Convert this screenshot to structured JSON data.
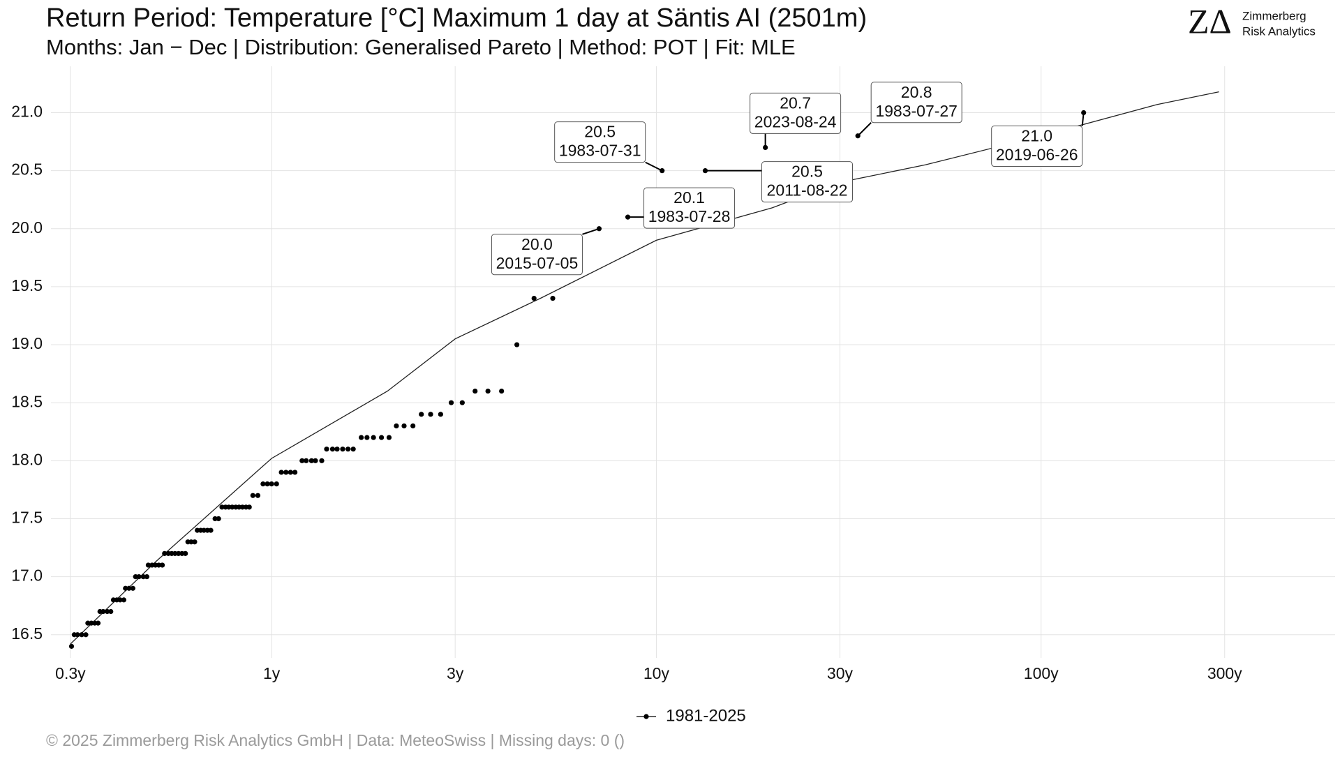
{
  "chart_data": {
    "type": "scatter",
    "title": "Return Period: Temperature [°C] Maximum 1 day at Säntis  AI (2501m)",
    "subtitle": "Months: Jan − Dec | Distribution: Generalised Pareto | Method: POT | Fit: MLE",
    "footer": "©  2025 Zimmerberg Risk Analytics GmbH | Data: MeteoSwiss | Missing days: 0 ()",
    "logo": {
      "mark": "ZΔ",
      "line1": "Zimmerberg",
      "line2": "Risk Analytics"
    },
    "log_x": true,
    "grid": true,
    "legend": "bottom",
    "xlim": [
      0.267,
      581
    ],
    "ylim": [
      16.3,
      21.4
    ],
    "xticks": [
      {
        "value": 0.3,
        "label": "0.3y"
      },
      {
        "value": 1,
        "label": "1y"
      },
      {
        "value": 3,
        "label": "3y"
      },
      {
        "value": 10,
        "label": "10y"
      },
      {
        "value": 30,
        "label": "30y"
      },
      {
        "value": 100,
        "label": "100y"
      },
      {
        "value": 300,
        "label": "300y"
      }
    ],
    "yticks": [
      {
        "value": 16.5,
        "label": "16.5"
      },
      {
        "value": 17,
        "label": "17.0"
      },
      {
        "value": 17.5,
        "label": "17.5"
      },
      {
        "value": 18,
        "label": "18.0"
      },
      {
        "value": 18.5,
        "label": "18.5"
      },
      {
        "value": 19,
        "label": "19.0"
      },
      {
        "value": 19.5,
        "label": "19.5"
      },
      {
        "value": 20,
        "label": "20.0"
      },
      {
        "value": 20.5,
        "label": "20.5"
      },
      {
        "value": 21,
        "label": "21.0"
      }
    ],
    "series": [
      {
        "name": "1981-2025",
        "color": "#000000",
        "x": [
          0.302,
          0.307,
          0.313,
          0.321,
          0.329,
          0.333,
          0.34,
          0.347,
          0.354,
          0.358,
          0.365,
          0.374,
          0.382,
          0.388,
          0.396,
          0.404,
          0.413,
          0.417,
          0.426,
          0.436,
          0.443,
          0.452,
          0.464,
          0.474,
          0.478,
          0.489,
          0.499,
          0.509,
          0.52,
          0.527,
          0.539,
          0.55,
          0.561,
          0.573,
          0.585,
          0.597,
          0.606,
          0.618,
          0.631,
          0.641,
          0.654,
          0.667,
          0.681,
          0.695,
          0.713,
          0.728,
          0.743,
          0.759,
          0.774,
          0.79,
          0.807,
          0.823,
          0.84,
          0.858,
          0.875,
          0.894,
          0.921,
          0.95,
          0.975,
          1.0,
          1.03,
          1.06,
          1.09,
          1.12,
          1.15,
          1.2,
          1.23,
          1.27,
          1.3,
          1.35,
          1.39,
          1.44,
          1.48,
          1.53,
          1.58,
          1.63,
          1.71,
          1.77,
          1.84,
          1.93,
          2.02,
          2.11,
          2.21,
          2.33,
          2.45,
          2.59,
          2.75,
          2.93,
          3.13,
          3.38,
          3.65,
          3.96,
          4.34,
          4.81,
          5.38,
          7.1,
          8.43,
          10.35,
          13.4,
          19.2,
          33.4,
          129
        ],
        "values": [
          16.4,
          16.5,
          16.5,
          16.5,
          16.5,
          16.6,
          16.6,
          16.6,
          16.6,
          16.7,
          16.7,
          16.7,
          16.7,
          16.8,
          16.8,
          16.8,
          16.8,
          16.9,
          16.9,
          16.9,
          17.0,
          17.0,
          17.0,
          17.0,
          17.1,
          17.1,
          17.1,
          17.1,
          17.1,
          17.2,
          17.2,
          17.2,
          17.2,
          17.2,
          17.2,
          17.2,
          17.3,
          17.3,
          17.3,
          17.4,
          17.4,
          17.4,
          17.4,
          17.4,
          17.5,
          17.5,
          17.6,
          17.6,
          17.6,
          17.6,
          17.6,
          17.6,
          17.6,
          17.6,
          17.6,
          17.7,
          17.7,
          17.8,
          17.8,
          17.8,
          17.8,
          17.9,
          17.9,
          17.9,
          17.9,
          18.0,
          18.0,
          18.0,
          18.0,
          18.0,
          18.1,
          18.1,
          18.1,
          18.1,
          18.1,
          18.1,
          18.2,
          18.2,
          18.2,
          18.2,
          18.2,
          18.3,
          18.3,
          18.3,
          18.4,
          18.4,
          18.4,
          18.5,
          18.5,
          18.6,
          18.6,
          18.6,
          19.0,
          19.4,
          19.4,
          20.0,
          20.1,
          20.5,
          20.5,
          20.7,
          20.8,
          21.0
        ]
      }
    ],
    "fit": {
      "color": "#222222",
      "x": [
        0.3,
        0.5,
        1,
        2,
        3,
        5,
        10,
        20,
        30,
        50,
        100,
        200,
        290
      ],
      "values": [
        16.42,
        17.13,
        18.02,
        18.6,
        19.05,
        19.4,
        19.9,
        20.18,
        20.4,
        20.55,
        20.8,
        21.07,
        21.18
      ]
    },
    "annotations": [
      {
        "value": 20.0,
        "label": "20.0",
        "date": "2015-07-05"
      },
      {
        "value": 20.1,
        "label": "20.1",
        "date": "1983-07-28"
      },
      {
        "value": 20.5,
        "label": "20.5",
        "date": "1983-07-31"
      },
      {
        "value": 20.5,
        "label": "20.5",
        "date": "2011-08-22"
      },
      {
        "value": 20.7,
        "label": "20.7",
        "date": "2023-08-24"
      },
      {
        "value": 20.8,
        "label": "20.8",
        "date": "1983-07-27"
      },
      {
        "value": 21.0,
        "label": "21.0",
        "date": "2019-06-26"
      }
    ]
  }
}
